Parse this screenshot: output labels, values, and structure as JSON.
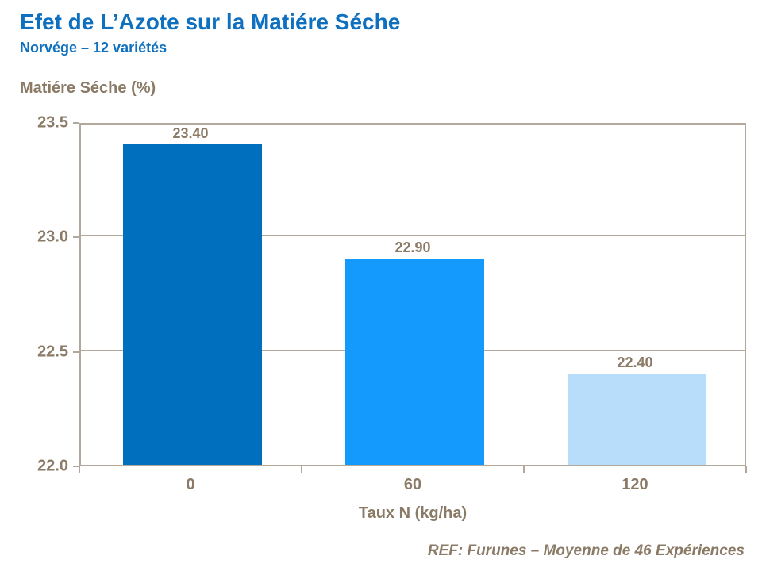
{
  "title": "Efet de L’Azote sur la Matiére Séche",
  "subtitle": "Norvége – 12 variétés",
  "footer": "REF: Furunes – Moyenne de 46 Expériences",
  "colors": {
    "title_blue": "#0E70BF",
    "axis_text": "#8A7A66",
    "axis_line": "#B2A89B",
    "gridline": "#B2A89B",
    "bar_colors": [
      "#0070BE",
      "#149AFC",
      "#B7DDFB"
    ]
  },
  "chart_data": {
    "type": "bar",
    "title": "",
    "xlabel": "Taux N (kg/ha)",
    "ylabel": "Matiére Séche (%)",
    "categories": [
      "0",
      "60",
      "120"
    ],
    "values": [
      23.4,
      22.9,
      22.4
    ],
    "value_labels": [
      "23.40",
      "22.90",
      "22.40"
    ],
    "ylim": [
      22.0,
      23.5
    ],
    "yticks": [
      23.5,
      23.0,
      22.5,
      22.0
    ],
    "ytick_labels": [
      "23.5",
      "23.0",
      "22.5",
      "22.0"
    ],
    "grid": true,
    "legend": false
  }
}
